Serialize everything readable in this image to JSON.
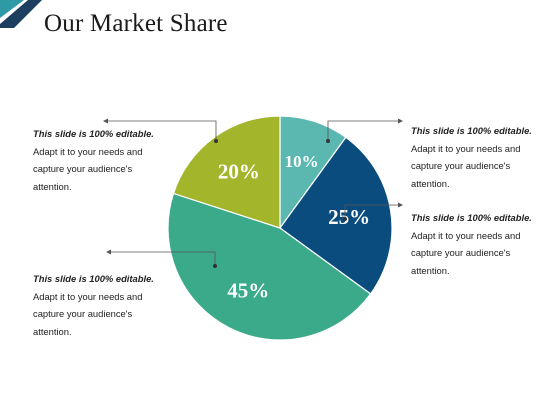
{
  "slide": {
    "title": "Our Market Share",
    "accent_colors": [
      "#2e9aa5",
      "#1c3f60"
    ]
  },
  "callouts": [
    {
      "heading": "This slide is 100% editable.",
      "lines": [
        "Adapt it to your needs and",
        "capture your audience's",
        "attention."
      ]
    },
    {
      "heading": "This slide is 100% editable.",
      "lines": [
        "Adapt it to your needs and",
        "capture your audience's",
        "attention."
      ]
    },
    {
      "heading": "This slide is 100% editable.",
      "lines": [
        "Adapt it to your needs and",
        "capture your audience's",
        "attention."
      ]
    },
    {
      "heading": "This slide is 100% editable.",
      "lines": [
        "Adapt it to your needs and",
        "capture your audience's",
        "attention."
      ]
    }
  ],
  "chart_data": {
    "type": "pie",
    "title": "Our Market Share",
    "categories": [
      "",
      "",
      "",
      ""
    ],
    "values": [
      10,
      25,
      45,
      20
    ],
    "labels": [
      "10%",
      "25%",
      "45%",
      "20%"
    ],
    "colors": [
      "#5bb8b0",
      "#0b4c7e",
      "#3aaa8a",
      "#a3b52a"
    ],
    "start_angle_deg": 0,
    "direction": "clockwise"
  }
}
